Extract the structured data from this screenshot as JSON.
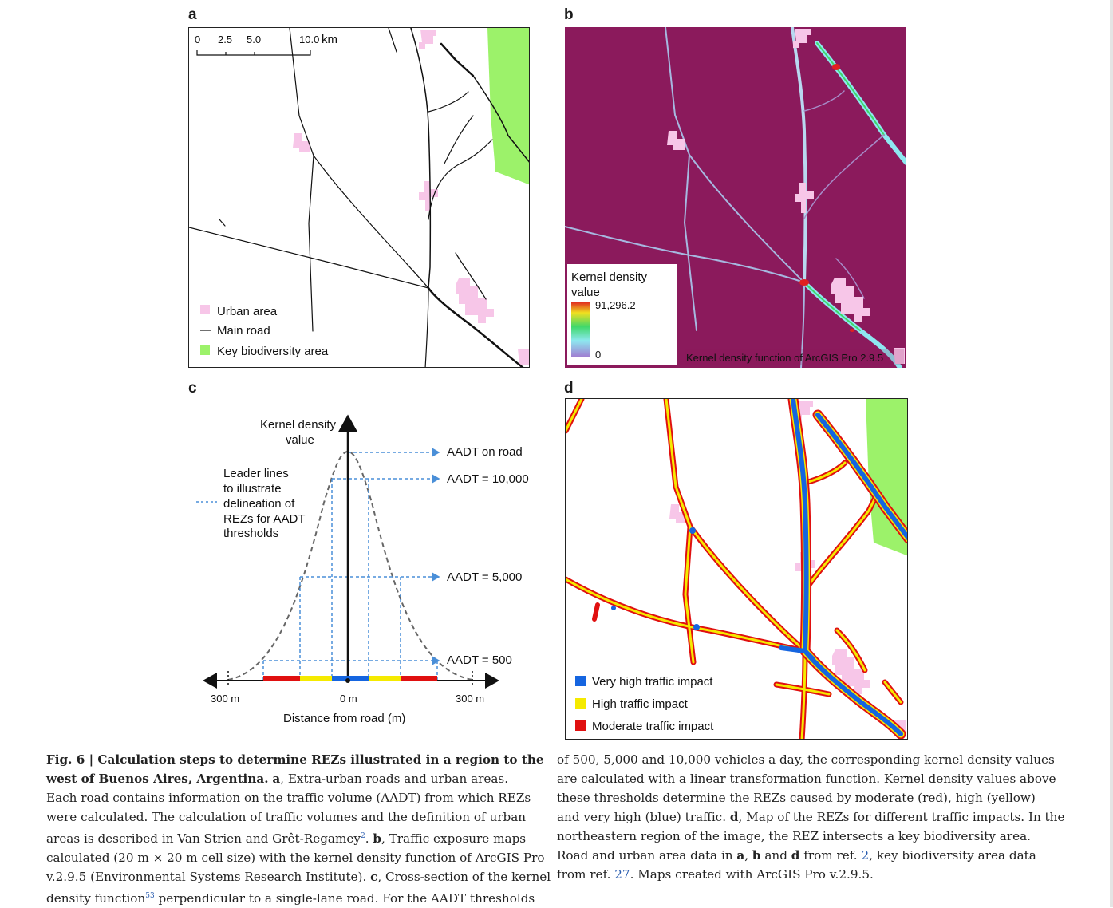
{
  "panels": {
    "a": {
      "letter": "a",
      "scale_ticks": [
        "0",
        "2.5",
        "5.0",
        "10.0"
      ],
      "scale_unit": "km",
      "legend": {
        "urban": "Urban area",
        "road": "Main road",
        "kba": "Key biodiversity area"
      }
    },
    "b": {
      "letter": "b",
      "legend_title_line1": "Kernel density",
      "legend_title_line2": "value",
      "max_value": "91,296.2",
      "min_value": "0",
      "credit": "Kernel density function of ArcGIS Pro 2.9.5"
    },
    "c": {
      "letter": "c",
      "y_label_line1": "Kernel density",
      "y_label_line2": "value",
      "leader_line1": "Leader lines",
      "leader_line2": "to illustrate",
      "leader_line3": "delineation of",
      "leader_line4": "REZs for AADT",
      "leader_line5": "thresholds",
      "labels": {
        "on_road": "AADT on road",
        "t10000": "AADT = 10,000",
        "t5000": "AADT = 5,000",
        "t500": "AADT = 500"
      },
      "x_left": "300 m",
      "x_center": "0 m",
      "x_right": "300 m",
      "x_label": "Distance from road (m)"
    },
    "d": {
      "letter": "d",
      "legend": {
        "very_high": "Very high traffic impact",
        "high": "High traffic impact",
        "moderate": "Moderate traffic impact"
      }
    }
  },
  "colors": {
    "urban": "#f7c6e8",
    "kba": "#9cf26a",
    "density_bg": "#8b1a5c",
    "very_high": "#1565e0",
    "high": "#f5ea00",
    "moderate": "#e01010",
    "leader": "#4a8fd8"
  },
  "caption": {
    "l1_bold": "Fig. 6 | Calculation steps to determine REZs illustrated in a region to the",
    "l2_bold": "west of Buenos Aires, Argentina.",
    "l2_b2": "a",
    "l2_rest": ", Extra-urban roads and urban areas.",
    "l3": "Each road contains information on the traffic volume (AADT) from which REZs",
    "l4": "were calculated. The calculation of traffic volumes and the definition of urban",
    "l5_pre": "areas is described in Van Strien and Grêt-Regamey",
    "l5_sup": "2",
    "l5_mid": ". ",
    "l5_b": "b",
    "l5_post": ", Traffic exposure maps",
    "l6": "calculated (20 m × 20 m cell size) with the kernel density function of ArcGIS Pro",
    "l7_pre": "v.2.9.5 (Environmental Systems Research Institute). ",
    "l7_b": "c",
    "l7_post": ", Cross-section of the kernel",
    "l8_pre": "density function",
    "l8_sup": "53",
    "l8_post": " perpendicular to a single-lane road. For the AADT thresholds",
    "r1": "of 500, 5,000 and 10,000 vehicles a day, the corresponding kernel density values",
    "r2": "are calculated with a linear transformation function. Kernel density values above",
    "r3": "these thresholds determine the REZs caused by moderate (red), high (yellow)",
    "r4_pre": "and very high (blue) traffic. ",
    "r4_b": "d",
    "r4_post": ", Map of the REZs for different traffic impacts. In the",
    "r5": "northeastern region of the image, the REZ intersects a key biodiversity area.",
    "r6_pre": "Road and urban area data in ",
    "r6_b1": "a",
    "r6_sep1": ", ",
    "r6_b2": "b",
    "r6_sep2": " and ",
    "r6_b3": "d",
    "r6_mid": " from ref. ",
    "r6_ref": "2",
    "r6_post": ", key biodiversity area data",
    "r7_pre": "from ref. ",
    "r7_ref": "27",
    "r7_post": ". Maps created with ArcGIS Pro v.2.9.5."
  }
}
